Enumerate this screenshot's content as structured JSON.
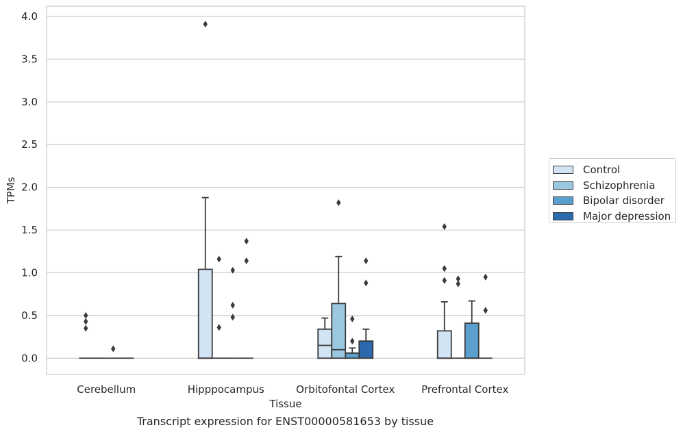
{
  "caption": "Transcript expression for ENST00000581653 by tissue",
  "legend": {
    "items": [
      {
        "label": "Control",
        "color": "#d2e3f3"
      },
      {
        "label": "Schizophrenia",
        "color": "#9ac8e0"
      },
      {
        "label": "Bipolar disorder",
        "color": "#5a9fcd"
      },
      {
        "label": "Major depression",
        "color": "#2a6aad"
      }
    ]
  },
  "chart_data": {
    "type": "box",
    "xlabel": "Tissue",
    "ylabel": "TPMs",
    "ylim": [
      -0.19,
      4.12
    ],
    "yticks": [
      "0.0",
      "0.5",
      "1.0",
      "1.5",
      "2.0",
      "2.5",
      "3.0",
      "3.5",
      "4.0"
    ],
    "ytick_values": [
      0,
      0.5,
      1.0,
      1.5,
      2.0,
      2.5,
      3.0,
      3.5,
      4.0
    ],
    "grid": true,
    "legend_position": "right",
    "categories": [
      "Cerebellum",
      "Hipppocampus",
      "Orbitofontal Cortex",
      "Prefrontal Cortex"
    ],
    "series": [
      {
        "name": "Control",
        "color": "#d2e3f3",
        "boxes": [
          {
            "min": 0,
            "q1": 0,
            "median": 0,
            "q3": 0,
            "max": 0,
            "outliers": [
              0.5,
              0.43,
              0.35
            ]
          },
          {
            "min": 0,
            "q1": 0,
            "median": 0,
            "q3": 1.04,
            "max": 1.88,
            "outliers": [
              3.91
            ]
          },
          {
            "min": 0,
            "q1": 0,
            "median": 0.15,
            "q3": 0.34,
            "max": 0.47,
            "outliers": []
          },
          {
            "min": 0,
            "q1": 0,
            "median": 0,
            "q3": 0.32,
            "max": 0.66,
            "outliers": [
              1.54,
              1.05,
              0.91
            ]
          }
        ]
      },
      {
        "name": "Schizophrenia",
        "color": "#9ac8e0",
        "boxes": [
          {
            "min": 0,
            "q1": 0,
            "median": 0,
            "q3": 0,
            "max": 0,
            "outliers": []
          },
          {
            "min": 0,
            "q1": 0,
            "median": 0,
            "q3": 0,
            "max": 0,
            "outliers": [
              1.16,
              0.36
            ]
          },
          {
            "min": 0,
            "q1": 0,
            "median": 0.1,
            "q3": 0.64,
            "max": 1.19,
            "outliers": [
              1.82
            ]
          },
          {
            "min": 0,
            "q1": 0,
            "median": 0,
            "q3": 0,
            "max": 0,
            "outliers": [
              0.93,
              0.87
            ]
          }
        ]
      },
      {
        "name": "Bipolar disorder",
        "color": "#5a9fcd",
        "boxes": [
          {
            "min": 0,
            "q1": 0,
            "median": 0,
            "q3": 0,
            "max": 0,
            "outliers": [
              0.11
            ]
          },
          {
            "min": 0,
            "q1": 0,
            "median": 0,
            "q3": 0,
            "max": 0,
            "outliers": [
              1.03,
              0.62,
              0.48
            ]
          },
          {
            "min": 0,
            "q1": 0,
            "median": 0.06,
            "q3": 0.06,
            "max": 0.12,
            "outliers": [
              0.46,
              0.2
            ]
          },
          {
            "min": 0,
            "q1": 0,
            "median": 0,
            "q3": 0.41,
            "max": 0.67,
            "outliers": []
          }
        ]
      },
      {
        "name": "Major depression",
        "color": "#2a6aad",
        "boxes": [
          {
            "min": 0,
            "q1": 0,
            "median": 0,
            "q3": 0,
            "max": 0,
            "outliers": []
          },
          {
            "min": 0,
            "q1": 0,
            "median": 0,
            "q3": 0,
            "max": 0,
            "outliers": [
              1.37,
              1.14
            ]
          },
          {
            "min": 0,
            "q1": 0,
            "median": 0.2,
            "q3": 0.2,
            "max": 0.34,
            "outliers": [
              1.14,
              0.88
            ]
          },
          {
            "min": 0,
            "q1": 0,
            "median": 0,
            "q3": 0,
            "max": 0,
            "outliers": [
              0.95,
              0.56
            ]
          }
        ]
      }
    ]
  }
}
